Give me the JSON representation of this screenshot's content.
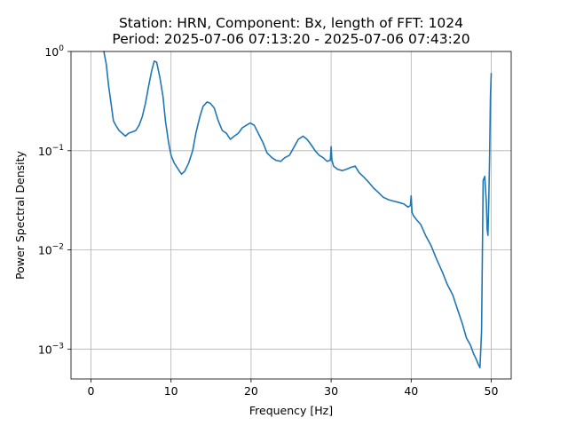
{
  "chart_data": {
    "type": "line",
    "title": "Station: HRN, Component: Bx, length of FFT: 1024",
    "subtitle": "Period: 2025-07-06 07:13:20 - 2025-07-06 07:43:20",
    "xlabel": "Frequency [Hz]",
    "ylabel": "Power Spectral Density",
    "yscale": "log",
    "xlim": [
      -2.5,
      52.5
    ],
    "ylim": [
      0.0005,
      1
    ],
    "grid": true,
    "xticks": [
      0,
      10,
      20,
      30,
      40,
      50
    ],
    "xtick_labels": [
      "0",
      "10",
      "20",
      "30",
      "40",
      "50"
    ],
    "yticks": [
      0.001,
      0.01,
      0.1,
      1
    ],
    "ytick_labels": [
      {
        "base": "10",
        "exp": "−3"
      },
      {
        "base": "10",
        "exp": "−2"
      },
      {
        "base": "10",
        "exp": "−1"
      },
      {
        "base": "10",
        "exp": "0"
      }
    ],
    "colors": {
      "series": "#1f77b4"
    },
    "series": [
      {
        "x": [
          1.6,
          1.9,
          2.2,
          2.5,
          2.8,
          3.1,
          3.5,
          3.9,
          4.3,
          4.7,
          5.2,
          5.6,
          6.0,
          6.4,
          6.8,
          7.2,
          7.6,
          7.9,
          8.2,
          8.6,
          9.0,
          9.3,
          9.7,
          10.0,
          10.4,
          10.9,
          11.3,
          11.7,
          12.2,
          12.7,
          13.1,
          13.6,
          14.0,
          14.5,
          14.9,
          15.4,
          15.9,
          16.4,
          16.9,
          17.4,
          17.9,
          18.4,
          18.9,
          19.4,
          19.9,
          20.4,
          20.9,
          21.5,
          22.0,
          22.6,
          23.1,
          23.7,
          24.2,
          24.8,
          25.4,
          25.9,
          26.5,
          27.0,
          27.5,
          28.0,
          28.5,
          29.0,
          29.5,
          29.9,
          30.0,
          30.1,
          30.3,
          30.8,
          31.4,
          31.9,
          32.5,
          33.0,
          33.5,
          34.1,
          34.7,
          35.3,
          35.9,
          36.5,
          37.2,
          37.8,
          38.5,
          39.1,
          39.6,
          39.9,
          40.0,
          40.1,
          40.3,
          40.7,
          41.2,
          41.8,
          42.5,
          43.2,
          43.9,
          44.5,
          45.2,
          45.8,
          46.4,
          46.9,
          47.4,
          47.8,
          48.1,
          48.4,
          48.6,
          48.8,
          49.0,
          49.2,
          49.4,
          49.5,
          49.6,
          49.7,
          49.8,
          49.9,
          50.0
        ],
        "y": [
          1.0,
          0.75,
          0.45,
          0.3,
          0.2,
          0.18,
          0.16,
          0.15,
          0.14,
          0.15,
          0.155,
          0.16,
          0.18,
          0.22,
          0.3,
          0.45,
          0.65,
          0.8,
          0.78,
          0.55,
          0.35,
          0.2,
          0.12,
          0.09,
          0.075,
          0.065,
          0.058,
          0.062,
          0.075,
          0.1,
          0.15,
          0.22,
          0.28,
          0.31,
          0.3,
          0.27,
          0.2,
          0.16,
          0.15,
          0.13,
          0.14,
          0.15,
          0.17,
          0.18,
          0.19,
          0.18,
          0.15,
          0.12,
          0.095,
          0.085,
          0.08,
          0.078,
          0.085,
          0.09,
          0.11,
          0.13,
          0.14,
          0.13,
          0.115,
          0.1,
          0.09,
          0.085,
          0.078,
          0.08,
          0.11,
          0.08,
          0.07,
          0.065,
          0.063,
          0.065,
          0.068,
          0.07,
          0.06,
          0.054,
          0.048,
          0.042,
          0.038,
          0.034,
          0.032,
          0.031,
          0.03,
          0.029,
          0.027,
          0.028,
          0.035,
          0.024,
          0.022,
          0.02,
          0.018,
          0.014,
          0.011,
          0.008,
          0.006,
          0.0045,
          0.0035,
          0.0025,
          0.0018,
          0.0013,
          0.0011,
          0.0009,
          0.0008,
          0.0007,
          0.00065,
          0.0015,
          0.05,
          0.055,
          0.03,
          0.016,
          0.014,
          0.03,
          0.09,
          0.35,
          0.6
        ]
      }
    ]
  }
}
